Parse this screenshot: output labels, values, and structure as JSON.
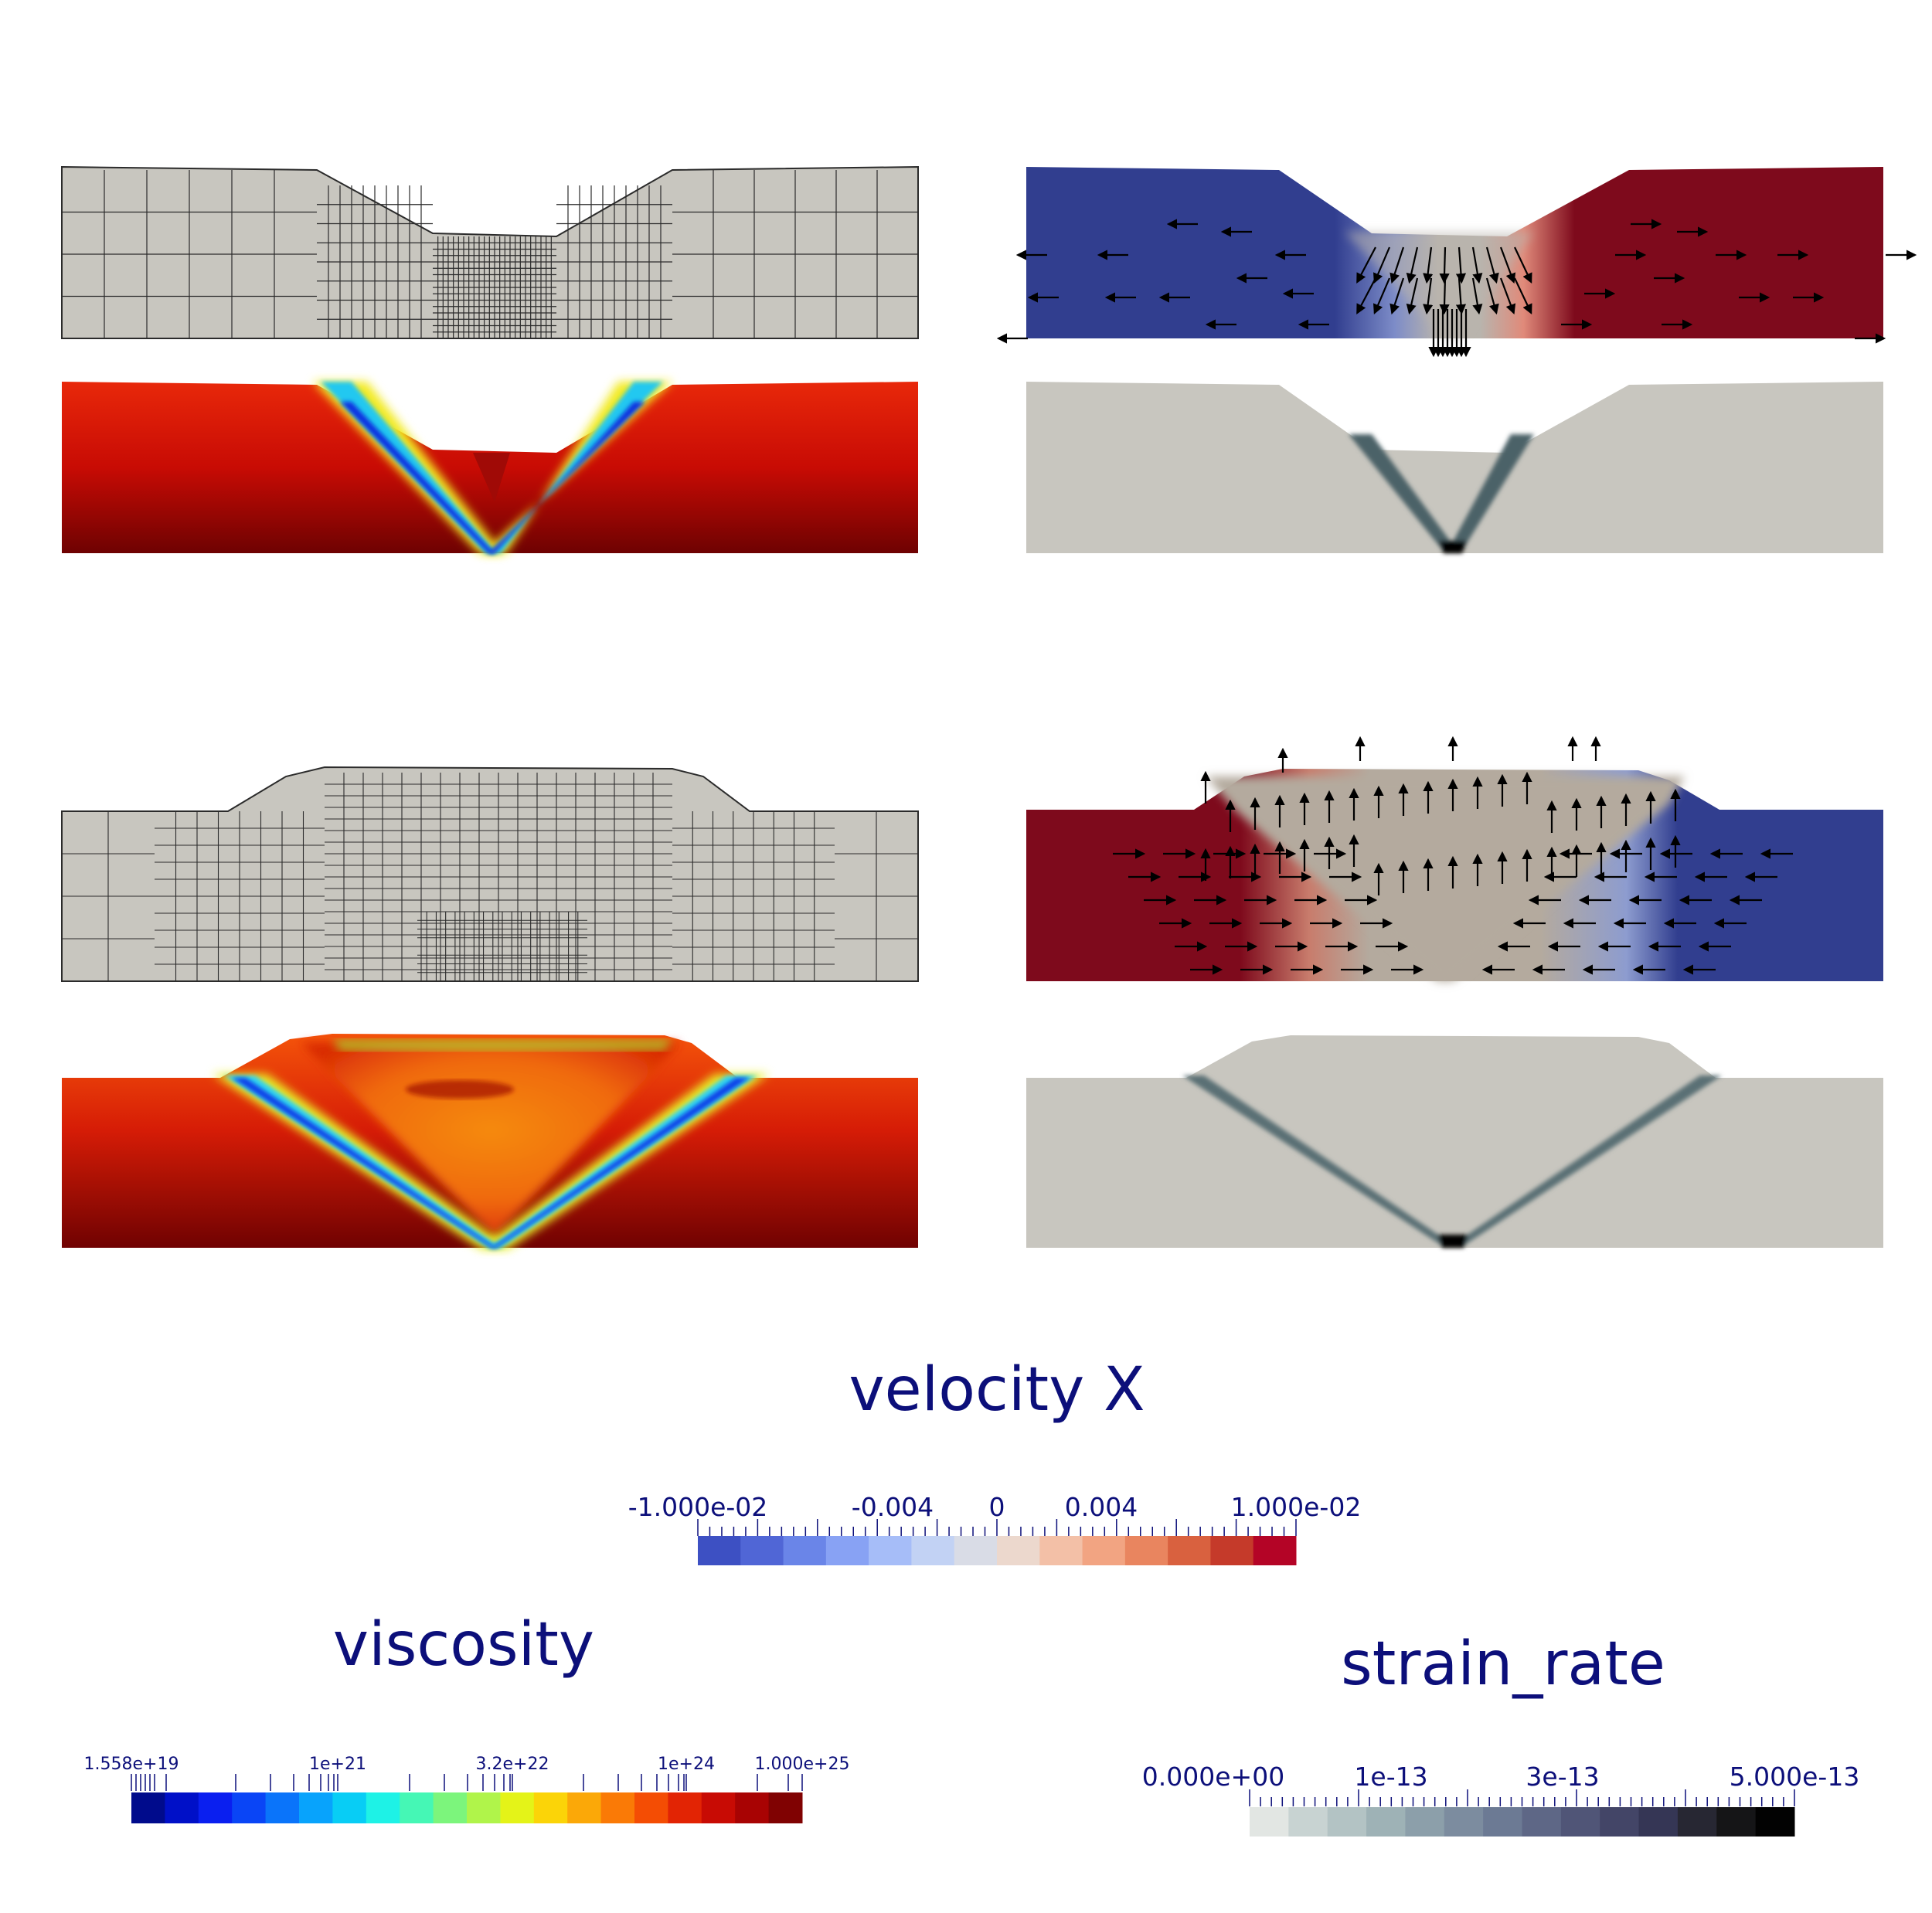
{
  "panels": [
    {
      "id": "extension-mesh",
      "field": "mesh",
      "mode": "extension"
    },
    {
      "id": "extension-velocity",
      "field": "velocity X",
      "mode": "extension"
    },
    {
      "id": "extension-viscosity",
      "field": "viscosity",
      "mode": "extension"
    },
    {
      "id": "extension-strain-rate",
      "field": "strain_rate",
      "mode": "extension"
    },
    {
      "id": "compression-mesh",
      "field": "mesh",
      "mode": "compression"
    },
    {
      "id": "compression-velocity",
      "field": "velocity X",
      "mode": "compression"
    },
    {
      "id": "compression-viscosity",
      "field": "viscosity",
      "mode": "compression"
    },
    {
      "id": "compression-strain-rate",
      "field": "strain_rate",
      "mode": "compression"
    }
  ],
  "colorbars": {
    "velocity": {
      "title": "velocity X",
      "labels": [
        "-1.000e-02",
        "-0.004",
        "0",
        "0.004",
        "1.000e-02"
      ],
      "colors": [
        "#3d50c3",
        "#5066d6",
        "#6a85e8",
        "#88a2f4",
        "#a6bdf8",
        "#c2d2f4",
        "#d9dce6",
        "#ecd8cd",
        "#f3c0a7",
        "#f2a482",
        "#e9855f",
        "#d9613f",
        "#c53a2a",
        "#b40426"
      ]
    },
    "viscosity": {
      "title": "viscosity",
      "labels": [
        "1.558e+19",
        "1e+21",
        "3.2e+22",
        "1e+24",
        "1.000e+25"
      ],
      "colors": [
        "#000b8c",
        "#0010c8",
        "#0a1ff0",
        "#0a45f6",
        "#0a74fa",
        "#08a3fc",
        "#08cdf5",
        "#1ef2e6",
        "#45f7b5",
        "#7cf57c",
        "#b0f44a",
        "#e4f318",
        "#fbd408",
        "#fba808",
        "#fa7a06",
        "#f44d04",
        "#e22404",
        "#c80b04",
        "#a80303",
        "#800202"
      ]
    },
    "strain_rate": {
      "title": "strain_rate",
      "labels": [
        "0.000e+00",
        "1e-13",
        "3e-13",
        "5.000e-13"
      ],
      "colors": [
        "#e2e6e3",
        "#c8d3d2",
        "#b3c3c4",
        "#9eb2b6",
        "#8c9faa",
        "#7c8c9f",
        "#6c7a94",
        "#5e6786",
        "#505577",
        "#434567",
        "#353655",
        "#272733",
        "#151517",
        "#020202"
      ]
    }
  },
  "colors": {
    "mesh_fill": "#c8c6bf",
    "grid_line": "#2b2b2b",
    "label_text": "#0c0f7a",
    "velocity_neg": "#313e8f",
    "velocity_pos": "#7e0a1c",
    "velocity_mid": "#b4aa9e",
    "strain_band": "#3e555c"
  }
}
